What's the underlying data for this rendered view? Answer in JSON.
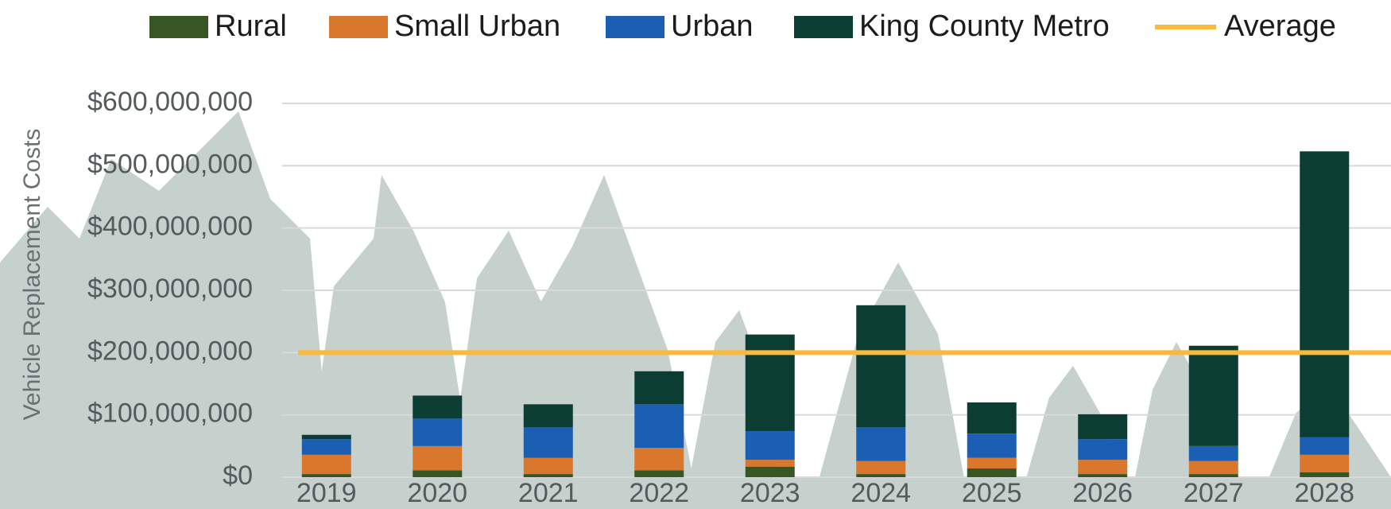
{
  "chart_data": {
    "type": "stacked-bar",
    "y_axis_label": "Vehicle Replacement Costs",
    "categories": [
      "2019",
      "2020",
      "2021",
      "2022",
      "2023",
      "2024",
      "2025",
      "2026",
      "2027",
      "2028"
    ],
    "series": [
      {
        "name": "Rural",
        "color": "#375623",
        "values": [
          5000000,
          11000000,
          5000000,
          11000000,
          17000000,
          5000000,
          14000000,
          5000000,
          5000000,
          8000000
        ]
      },
      {
        "name": "Small Urban",
        "color": "#d9782d",
        "values": [
          31000000,
          39000000,
          26000000,
          36000000,
          11000000,
          21000000,
          17000000,
          23000000,
          21000000,
          28000000
        ]
      },
      {
        "name": "Urban",
        "color": "#1b5fb4",
        "values": [
          25000000,
          44000000,
          49000000,
          70000000,
          46000000,
          54000000,
          39000000,
          33000000,
          24000000,
          28000000
        ]
      },
      {
        "name": "King County Metro",
        "color": "#0b3d33",
        "values": [
          7000000,
          37000000,
          37000000,
          53000000,
          155000000,
          196000000,
          50000000,
          40000000,
          161000000,
          459000000
        ]
      }
    ],
    "average": {
      "name": "Average",
      "color": "#f9b93a",
      "value": 200000000
    },
    "ylim": [
      0,
      600000000
    ],
    "yticks": [
      {
        "value": 0,
        "label": "$0"
      },
      {
        "value": 100000000,
        "label": "$100,000,000"
      },
      {
        "value": 200000000,
        "label": "$200,000,000"
      },
      {
        "value": 300000000,
        "label": "$300,000,000"
      },
      {
        "value": 400000000,
        "label": "$400,000,000"
      },
      {
        "value": 500000000,
        "label": "$500,000,000"
      },
      {
        "value": 600000000,
        "label": "$600,000,000"
      }
    ],
    "grid": true
  }
}
